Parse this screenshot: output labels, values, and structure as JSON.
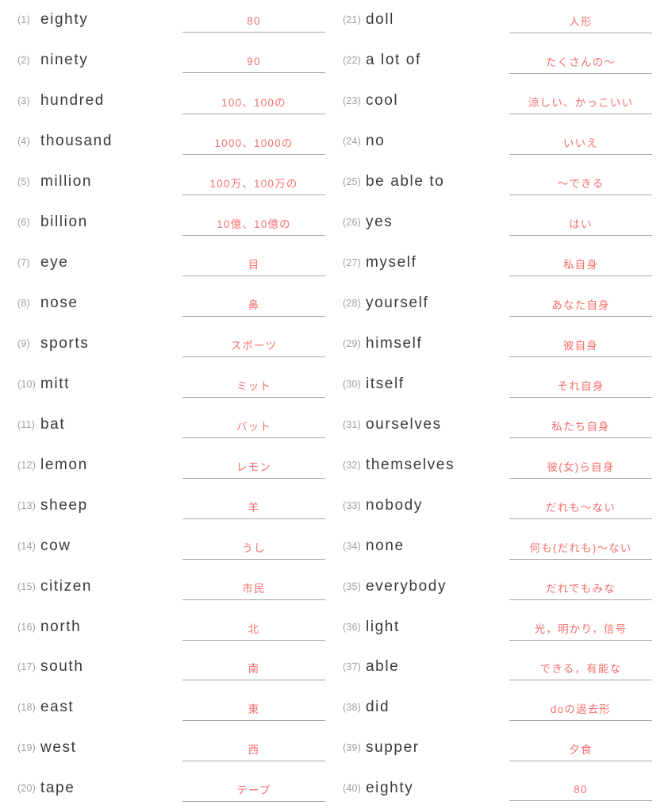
{
  "colors": {
    "number": "#a0a0a0",
    "word": "#3a3a3a",
    "answer": "#f5706d",
    "underline": "#a6a6a6",
    "bg": "#ffffff"
  },
  "worksheet": {
    "columns": [
      {
        "name": "left",
        "items": [
          {
            "num": "(1)",
            "word": "eighty",
            "answer": "80"
          },
          {
            "num": "(2)",
            "word": "ninety",
            "answer": "90"
          },
          {
            "num": "(3)",
            "word": "hundred",
            "answer": "100、100の"
          },
          {
            "num": "(4)",
            "word": "thousand",
            "answer": "1000、1000の"
          },
          {
            "num": "(5)",
            "word": "million",
            "answer": "100万、100万の"
          },
          {
            "num": "(6)",
            "word": "billion",
            "answer": "10億、10億の"
          },
          {
            "num": "(7)",
            "word": "eye",
            "answer": "目"
          },
          {
            "num": "(8)",
            "word": "nose",
            "answer": "鼻"
          },
          {
            "num": "(9)",
            "word": "sports",
            "answer": "スポーツ"
          },
          {
            "num": "(10)",
            "word": "mitt",
            "answer": "ミット"
          },
          {
            "num": "(11)",
            "word": "bat",
            "answer": "バット"
          },
          {
            "num": "(12)",
            "word": "lemon",
            "answer": "レモン"
          },
          {
            "num": "(13)",
            "word": "sheep",
            "answer": "羊"
          },
          {
            "num": "(14)",
            "word": "cow",
            "answer": "うし"
          },
          {
            "num": "(15)",
            "word": "citizen",
            "answer": "市民"
          },
          {
            "num": "(16)",
            "word": "north",
            "answer": "北"
          },
          {
            "num": "(17)",
            "word": "south",
            "answer": "南"
          },
          {
            "num": "(18)",
            "word": "east",
            "answer": "東"
          },
          {
            "num": "(19)",
            "word": "west",
            "answer": "西"
          },
          {
            "num": "(20)",
            "word": "tape",
            "answer": "テープ"
          }
        ]
      },
      {
        "name": "right",
        "items": [
          {
            "num": "(21)",
            "word": "doll",
            "answer": "人形"
          },
          {
            "num": "(22)",
            "word": "a lot of",
            "answer": "たくさんの〜"
          },
          {
            "num": "(23)",
            "word": "cool",
            "answer": "涼しい、かっこいい"
          },
          {
            "num": "(24)",
            "word": "no",
            "answer": "いいえ"
          },
          {
            "num": "(25)",
            "word": "be able to",
            "answer": "〜できる"
          },
          {
            "num": "(26)",
            "word": "yes",
            "answer": "はい"
          },
          {
            "num": "(27)",
            "word": "myself",
            "answer": "私自身"
          },
          {
            "num": "(28)",
            "word": "yourself",
            "answer": "あなた自身"
          },
          {
            "num": "(29)",
            "word": "himself",
            "answer": "彼自身"
          },
          {
            "num": "(30)",
            "word": "itself",
            "answer": "それ自身"
          },
          {
            "num": "(31)",
            "word": "ourselves",
            "answer": "私たち自身"
          },
          {
            "num": "(32)",
            "word": "themselves",
            "answer": "彼(女)ら自身"
          },
          {
            "num": "(33)",
            "word": "nobody",
            "answer": "だれも〜ない"
          },
          {
            "num": "(34)",
            "word": "none",
            "answer": "何も(だれも)〜ない"
          },
          {
            "num": "(35)",
            "word": "everybody",
            "answer": "だれでもみな"
          },
          {
            "num": "(36)",
            "word": "light",
            "answer": "光，明かり，信号"
          },
          {
            "num": "(37)",
            "word": "able",
            "answer": "できる，有能な"
          },
          {
            "num": "(38)",
            "word": "did",
            "answer": "doの過去形"
          },
          {
            "num": "(39)",
            "word": "supper",
            "answer": "夕食"
          },
          {
            "num": "(40)",
            "word": "eighty",
            "answer": "80"
          }
        ]
      }
    ]
  }
}
